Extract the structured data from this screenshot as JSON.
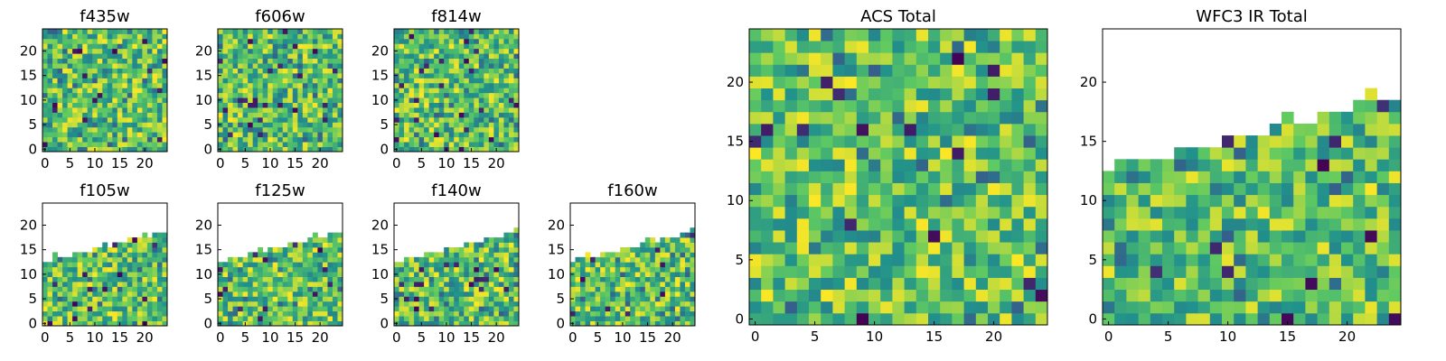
{
  "chart_data": [
    {
      "type": "heatmap",
      "title": "f435w",
      "xticks": [
        "0",
        "5",
        "10",
        "15",
        "20"
      ],
      "yticks": [
        "0",
        "5",
        "10",
        "15",
        "20"
      ],
      "xlim": [
        0,
        25
      ],
      "ylim": [
        0,
        25
      ],
      "colormap": "viridis",
      "mask": "none",
      "seed": 11
    },
    {
      "type": "heatmap",
      "title": "f606w",
      "xticks": [
        "0",
        "5",
        "10",
        "15",
        "20"
      ],
      "yticks": [
        "0",
        "5",
        "10",
        "15",
        "20"
      ],
      "xlim": [
        0,
        25
      ],
      "ylim": [
        0,
        25
      ],
      "colormap": "viridis",
      "mask": "none",
      "seed": 23
    },
    {
      "type": "heatmap",
      "title": "f814w",
      "xticks": [
        "0",
        "5",
        "10",
        "15",
        "20"
      ],
      "yticks": [
        "0",
        "5",
        "10",
        "15",
        "20"
      ],
      "xlim": [
        0,
        25
      ],
      "ylim": [
        0,
        25
      ],
      "colormap": "viridis",
      "mask": "none",
      "seed": 37
    },
    {
      "type": "heatmap",
      "title": "f105w",
      "xticks": [
        "0",
        "5",
        "10",
        "15",
        "20"
      ],
      "yticks": [
        "0",
        "5",
        "10",
        "15",
        "20"
      ],
      "xlim": [
        0,
        25
      ],
      "ylim": [
        0,
        25
      ],
      "colormap": "viridis",
      "mask": "diagonal-edge",
      "seed": 41
    },
    {
      "type": "heatmap",
      "title": "f125w",
      "xticks": [
        "0",
        "5",
        "10",
        "15",
        "20"
      ],
      "yticks": [
        "0",
        "5",
        "10",
        "15",
        "20"
      ],
      "xlim": [
        0,
        25
      ],
      "ylim": [
        0,
        25
      ],
      "colormap": "viridis",
      "mask": "diagonal-edge",
      "seed": 53
    },
    {
      "type": "heatmap",
      "title": "f140w",
      "xticks": [
        "0",
        "5",
        "10",
        "15",
        "20"
      ],
      "yticks": [
        "0",
        "5",
        "10",
        "15",
        "20"
      ],
      "xlim": [
        0,
        25
      ],
      "ylim": [
        0,
        25
      ],
      "colormap": "viridis",
      "mask": "diagonal-edge",
      "seed": 67
    },
    {
      "type": "heatmap",
      "title": "f160w",
      "xticks": [
        "0",
        "5",
        "10",
        "15",
        "20"
      ],
      "yticks": [
        "0",
        "5",
        "10",
        "15",
        "20"
      ],
      "xlim": [
        0,
        25
      ],
      "ylim": [
        0,
        25
      ],
      "colormap": "viridis",
      "mask": "diagonal-edge",
      "seed": 79
    },
    {
      "type": "heatmap",
      "title": "ACS Total",
      "xticks": [
        "0",
        "5",
        "10",
        "15",
        "20"
      ],
      "yticks": [
        "0",
        "5",
        "10",
        "15",
        "20"
      ],
      "xlim": [
        0,
        25
      ],
      "ylim": [
        0,
        25
      ],
      "colormap": "viridis",
      "mask": "none",
      "seed": 97
    },
    {
      "type": "heatmap",
      "title": "WFC3 IR Total",
      "xticks": [
        "0",
        "5",
        "10",
        "15",
        "20"
      ],
      "yticks": [
        "0",
        "5",
        "10",
        "15",
        "20"
      ],
      "xlim": [
        0,
        25
      ],
      "ylim": [
        0,
        25
      ],
      "colormap": "viridis",
      "mask": "diagonal-edge",
      "seed": 113
    }
  ]
}
